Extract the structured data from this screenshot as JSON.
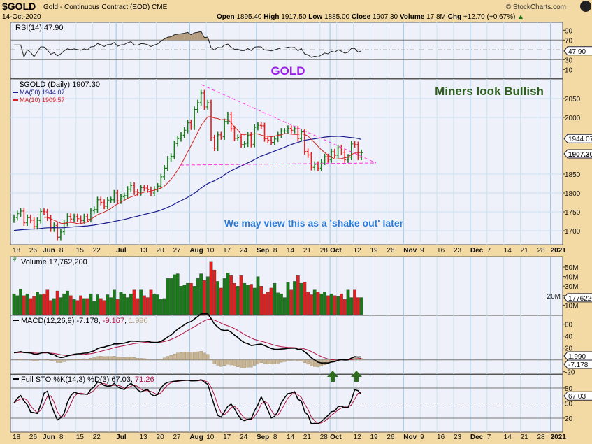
{
  "header": {
    "symbol": "$GOLD",
    "name": "Gold - Continuous Contract (EOD) CME",
    "date": "14-Oct-2020",
    "brand": "© StockCharts.com",
    "open_label": "Open",
    "open": "1895.40",
    "high_label": "High",
    "high": "1917.50",
    "low_label": "Low",
    "low": "1885.00",
    "close_label": "Close",
    "close": "1907.30",
    "volume_label": "Volume",
    "volume": "17.8M",
    "chg_label": "Chg",
    "chg": "+12.70 (+0.67%)"
  },
  "annotations": {
    "gold": "GOLD",
    "miners": "Miners look Bullish",
    "shakeout": "We may view this as a 'shake out' later"
  },
  "colors": {
    "up": "#1a7a1a",
    "down": "#e02020",
    "ma50": "#1a1a8c",
    "ma10": "#d42020",
    "trendline": "#ff33dd",
    "gold_text": "#9b1fe8",
    "miners_text": "#2e5e1e",
    "shakeout_text": "#2a7ad8",
    "background": "#f3d9a4",
    "panel": "#eef1f9"
  },
  "chart_data": [
    {
      "type": "ohlc",
      "title": "$GOLD (Daily) 1907.30",
      "legend": [
        {
          "name": "MA(50)",
          "value": "1944.07"
        },
        {
          "name": "MA(10)",
          "value": "1909.57"
        }
      ],
      "last_label": "1907.30",
      "ma50_label": "1944.07",
      "ylim": [
        1660,
        2090
      ],
      "y_ticks": [
        "2050",
        "2000",
        "1850",
        "1800",
        "1750",
        "1700"
      ],
      "x_ticks": [
        "18",
        "26",
        "Jun",
        "8",
        "15",
        "22",
        "Jul",
        "13",
        "20",
        "27",
        "Aug",
        "10",
        "17",
        "24",
        "Sep",
        "8",
        "14",
        "21",
        "28",
        "Oct",
        "12",
        "19",
        "26",
        "Nov",
        "9",
        "16",
        "23",
        "Dec",
        "7",
        "14",
        "21",
        "28",
        "2021"
      ],
      "weeks": [
        "May 18",
        "May 25",
        "Jun 1",
        "Jun 8",
        "Jun 15",
        "Jun 22",
        "Jun 29",
        "Jul 6",
        "Jul 13",
        "Jul 20",
        "Jul 27",
        "Aug 3",
        "Aug 10",
        "Aug 17",
        "Aug 24",
        "Aug 31",
        "Sep 8",
        "Sep 14",
        "Sep 21",
        "Sep 28",
        "Oct 5",
        "Oct 12"
      ],
      "close": [
        1735,
        1745,
        1752,
        1721,
        1735,
        1728,
        1711,
        1727,
        1751,
        1750,
        1734,
        1705,
        1714,
        1683,
        1697,
        1720,
        1738,
        1731,
        1737,
        1732,
        1727,
        1737,
        1730,
        1753,
        1756,
        1782,
        1775,
        1765,
        1781,
        1782,
        1800,
        1779,
        1790,
        1793,
        1810,
        1820,
        1803,
        1801,
        1814,
        1813,
        1809,
        1800,
        1810,
        1818,
        1843,
        1866,
        1890,
        1897,
        1931,
        1944,
        1953,
        1966,
        1986,
        1975,
        2021,
        2039,
        2065,
        2028,
        2039,
        1946,
        1919,
        1954,
        1949,
        1989,
        2007,
        1970,
        1945,
        1947,
        1928,
        1930,
        1953,
        1929,
        1974,
        1979,
        1978,
        1944,
        1940,
        1934,
        1943,
        1954,
        1964,
        1964,
        1971,
        1966,
        1970,
        1944,
        1962,
        1910,
        1901,
        1868,
        1876,
        1866,
        1882,
        1896,
        1888,
        1909,
        1900,
        1920,
        1908,
        1888,
        1895,
        1930,
        1928,
        1895,
        1907
      ],
      "trendlines": [
        {
          "from": [
            "Aug 6",
            2085
          ],
          "to": [
            "Oct 16",
            1877
          ]
        },
        {
          "from": [
            "Jul 31",
            1872
          ],
          "to": [
            "Oct 16",
            1877
          ]
        }
      ]
    },
    {
      "type": "line",
      "title": "RSI(14) 47.90",
      "last_label": "47.90",
      "y_ticks": [
        "90",
        "70",
        "30",
        "10"
      ],
      "ylim": [
        0,
        100
      ]
    },
    {
      "type": "bar",
      "title": "Volume 17,762,200",
      "last_label": "17762200",
      "y_ticks": [
        "50M",
        "40M",
        "30M",
        "20M",
        "10M"
      ],
      "unit": "M",
      "values": [
        22,
        20,
        27,
        20,
        22,
        17,
        19,
        24,
        21,
        22,
        26,
        15,
        17,
        25,
        18,
        22,
        25,
        20,
        16,
        15,
        20,
        17,
        17,
        22,
        14,
        21,
        17,
        15,
        21,
        18,
        26,
        16,
        24,
        22,
        18,
        22,
        26,
        17,
        26,
        20,
        18,
        26,
        22,
        21,
        16,
        17,
        38,
        38,
        42,
        43,
        30,
        31,
        33,
        33,
        30,
        38,
        43,
        36,
        40,
        56,
        47,
        35,
        28,
        38,
        44,
        41,
        33,
        30,
        41,
        33,
        31,
        32,
        28,
        40,
        30,
        22,
        24,
        28,
        33,
        23,
        22,
        18,
        34,
        26,
        35,
        41,
        33,
        34,
        24,
        21,
        26,
        24,
        22,
        24,
        20,
        22,
        20,
        19,
        22,
        16,
        26,
        18,
        26,
        18,
        18
      ]
    },
    {
      "type": "line",
      "title": "MACD(12,26,9)",
      "macd": "-7.178",
      "signal": "-9.167",
      "hist": "1.990",
      "y_ticks": [
        "60",
        "40",
        "20",
        "-20"
      ],
      "last_labels": [
        "1.990",
        "-7.178"
      ]
    },
    {
      "type": "line",
      "title": "Full STO %K(14,3) %D(3)",
      "k": "67.03",
      "d": "71.26",
      "y_ticks": [
        "80",
        "50",
        "20"
      ],
      "last_label": "67.03"
    }
  ]
}
